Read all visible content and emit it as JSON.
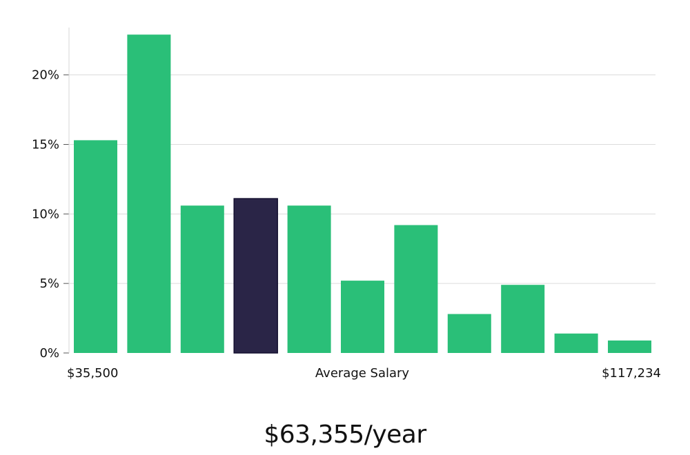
{
  "chart_data": {
    "type": "bar",
    "x_start_label": "$35,500",
    "x_center_label": "Average Salary",
    "x_end_label": "$117,234",
    "values": [
      15.3,
      22.9,
      10.6,
      11.1,
      10.6,
      5.2,
      9.2,
      2.8,
      4.9,
      1.4,
      0.9
    ],
    "highlight_index": 3,
    "yticks": [
      0,
      5,
      10,
      15,
      20
    ],
    "ytick_labels": [
      "0%",
      "5%",
      "10%",
      "15%",
      "20%"
    ],
    "ylim": [
      0,
      24
    ],
    "grid": true,
    "colors": {
      "bar": "#2abf78",
      "highlight": "#2a2547",
      "grid": "#dcdcdc",
      "axis": "#d6d6d6"
    }
  },
  "average_salary_text": "$63,355/year"
}
